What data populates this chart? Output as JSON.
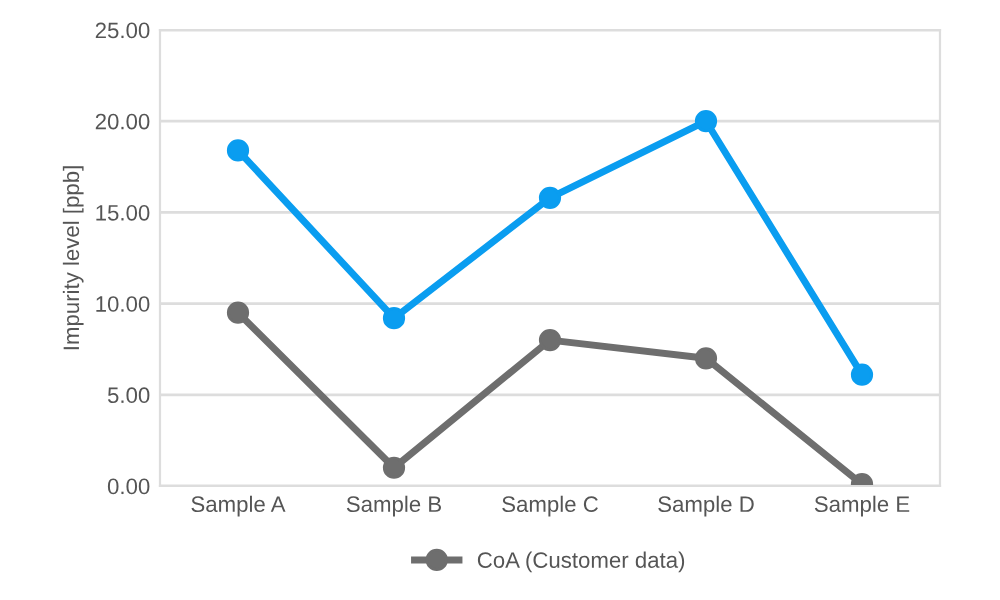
{
  "chart_data": {
    "type": "line",
    "ylabel": "Impurity level [ppb]",
    "categories": [
      "Sample A",
      "Sample B",
      "Sample C",
      "Sample D",
      "Sample E"
    ],
    "series": [
      {
        "color": "#0a9df0",
        "values": [
          18.4,
          9.2,
          15.8,
          20.0,
          6.1
        ]
      },
      {
        "name": "CoA (Customer data)",
        "color": "#6e6e6e",
        "values": [
          9.5,
          1.0,
          8.0,
          7.0,
          0.1
        ]
      }
    ],
    "ylim": [
      0,
      25
    ],
    "yticks": [
      {
        "value": 0,
        "label": "0.00"
      },
      {
        "value": 5,
        "label": "5.00"
      },
      {
        "value": 10,
        "label": "10.00"
      },
      {
        "value": 15,
        "label": "15.00"
      },
      {
        "value": 20,
        "label": "20.00"
      },
      {
        "value": 25,
        "label": "25.00"
      }
    ],
    "grid": "y",
    "legend": "bottom",
    "marker": "circle",
    "line_style": "solid"
  }
}
